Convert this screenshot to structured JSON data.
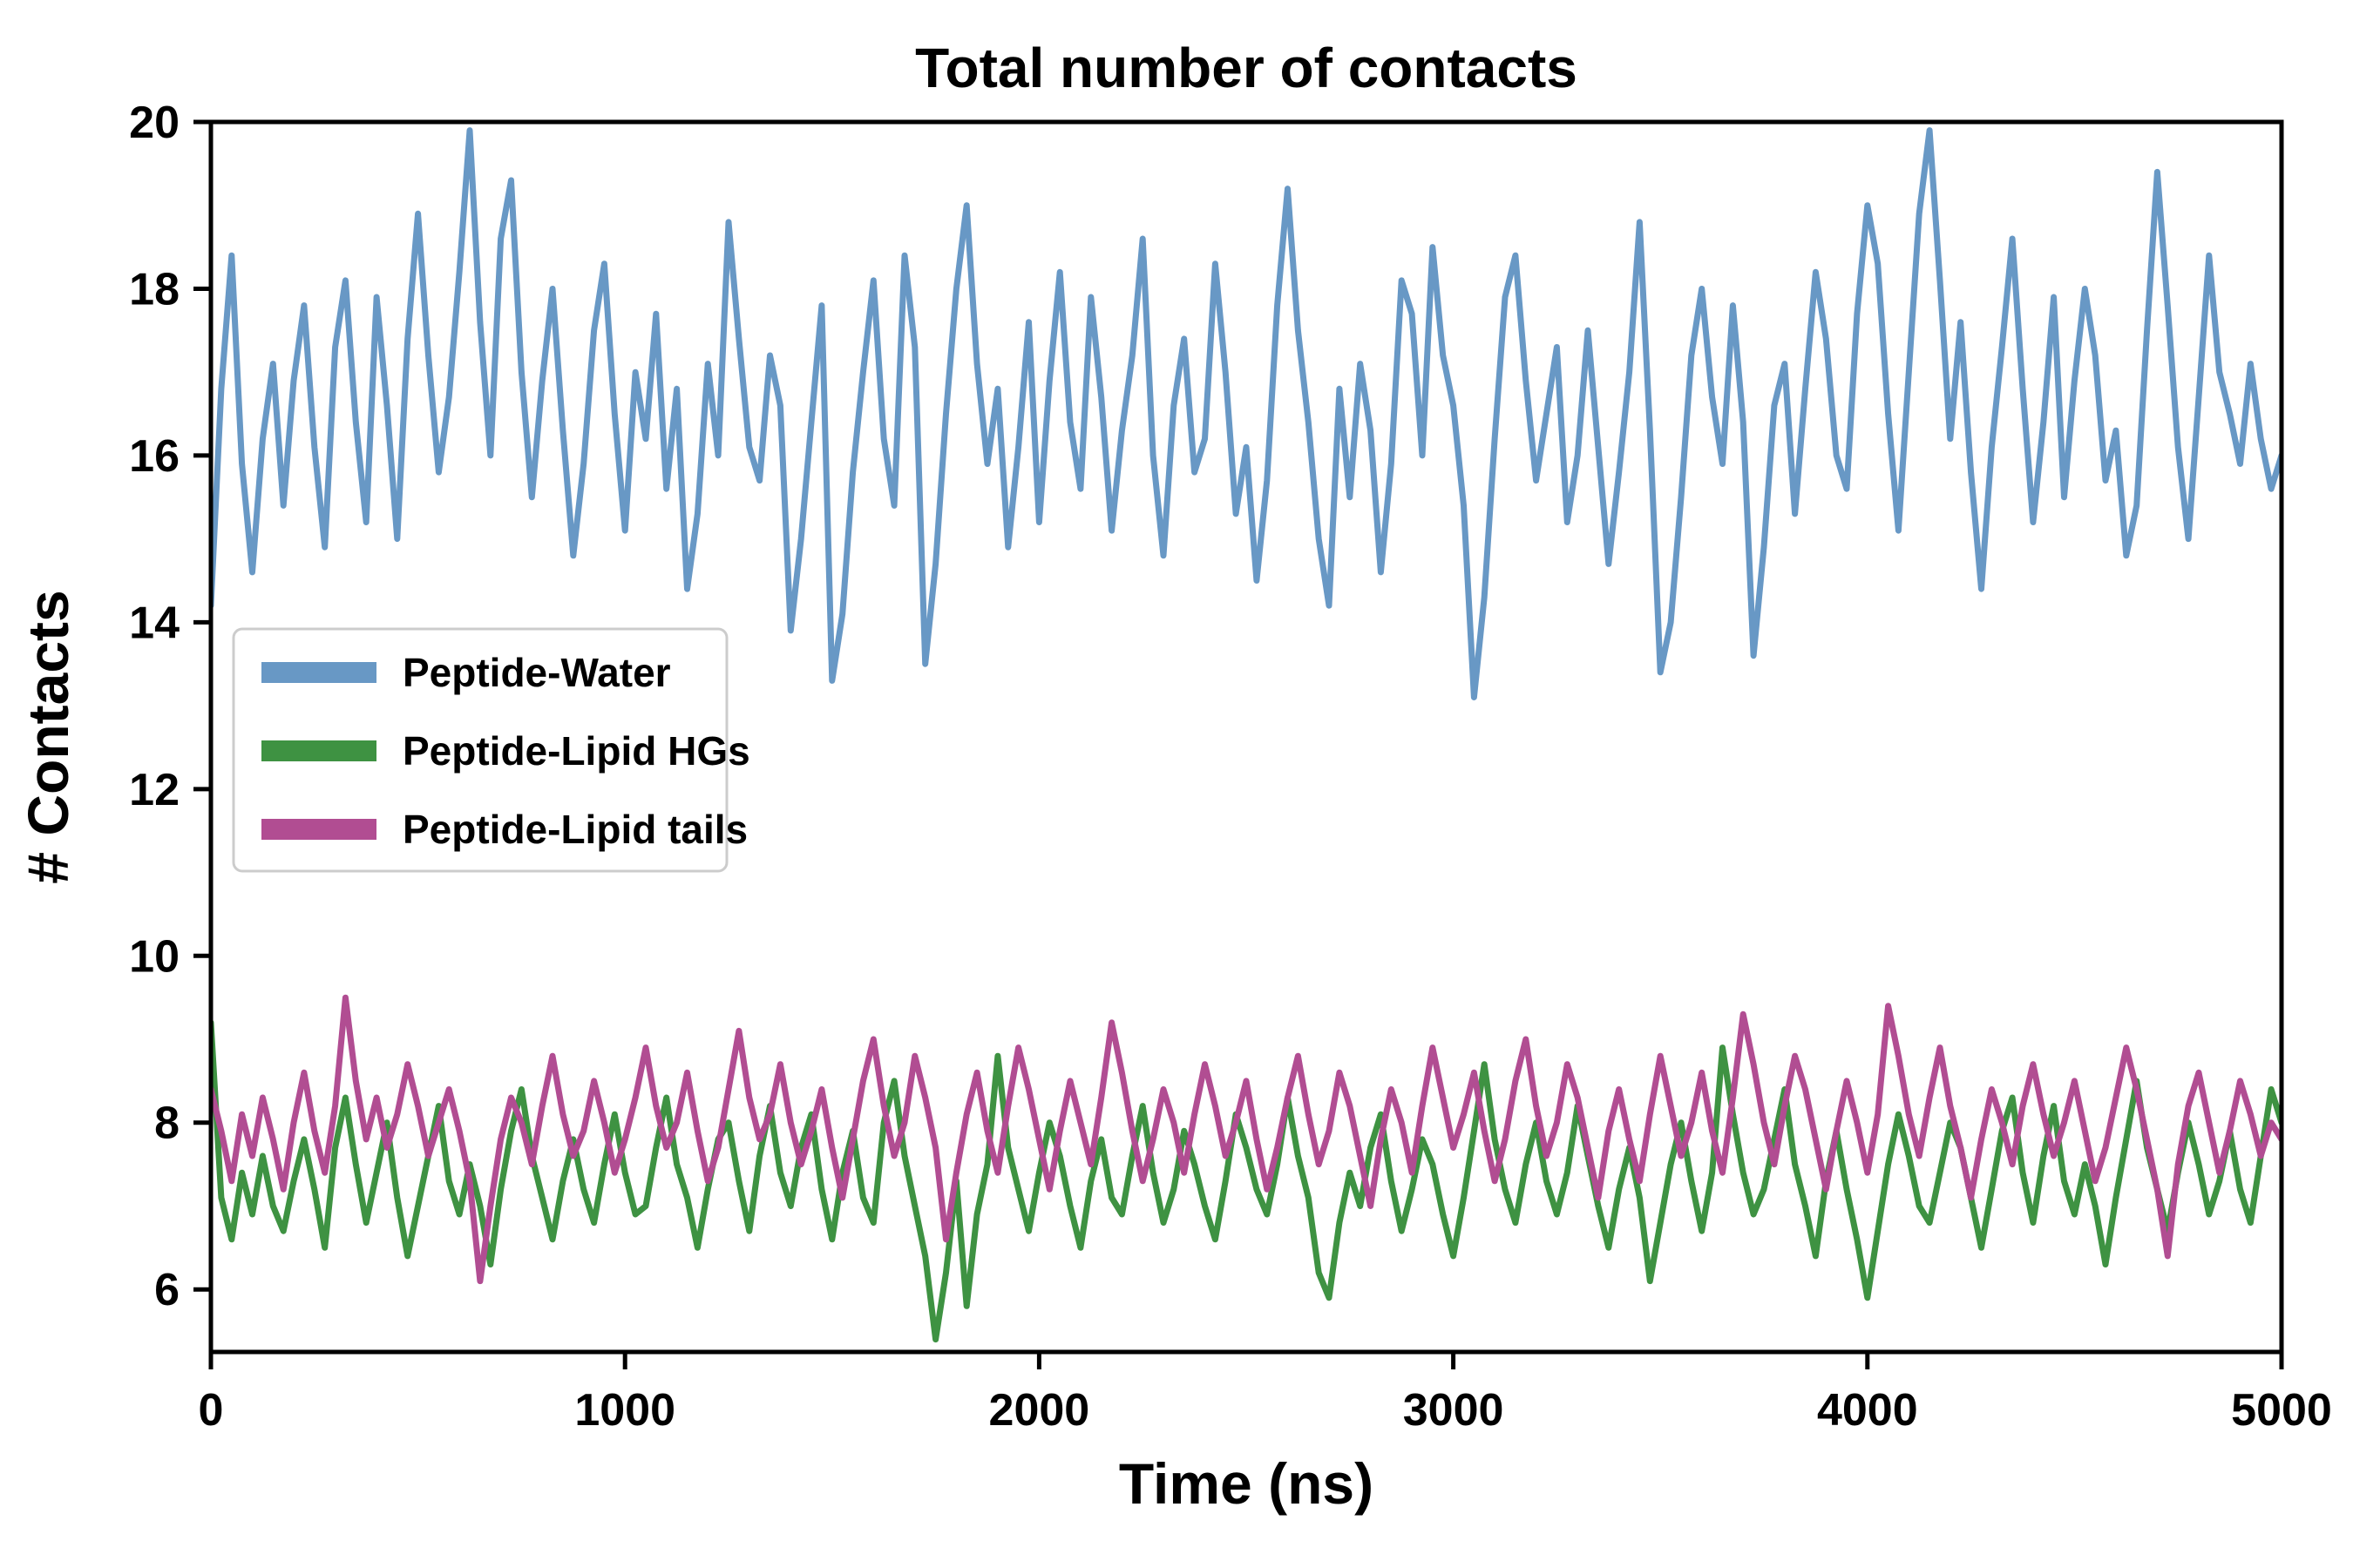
{
  "chart_data": {
    "type": "line",
    "title": "Total number of contacts",
    "xlabel": "Time (ns)",
    "ylabel": "# Contacts",
    "xlim": [
      0,
      5000
    ],
    "ylim": [
      5.25,
      20
    ],
    "xticks": [
      0,
      1000,
      2000,
      3000,
      4000,
      5000
    ],
    "yticks": [
      6,
      8,
      10,
      12,
      14,
      16,
      18,
      20
    ],
    "grid": false,
    "legend_position": "upper-left-inside",
    "x_start": 0,
    "x_step": 25,
    "colors": {
      "axis": "#000000",
      "background": "#ffffff",
      "legend_border": "#cccccc"
    },
    "series": [
      {
        "name": "Peptide-Water",
        "color": "#6898C5",
        "values": [
          14.2,
          16.8,
          18.4,
          15.9,
          14.6,
          16.2,
          17.1,
          15.4,
          16.9,
          17.8,
          16.1,
          14.9,
          17.3,
          18.1,
          16.4,
          15.2,
          17.9,
          16.6,
          15.0,
          17.4,
          18.9,
          17.2,
          15.8,
          16.7,
          18.2,
          19.9,
          17.6,
          16.0,
          18.6,
          19.3,
          17.0,
          15.5,
          16.9,
          18.0,
          16.3,
          14.8,
          15.9,
          17.5,
          18.3,
          16.5,
          15.1,
          17.0,
          16.2,
          17.7,
          15.6,
          16.8,
          14.4,
          15.3,
          17.1,
          16.0,
          18.8,
          17.4,
          16.1,
          15.7,
          17.2,
          16.6,
          13.9,
          15.0,
          16.4,
          17.8,
          13.3,
          14.1,
          15.8,
          17.0,
          18.1,
          16.2,
          15.4,
          18.4,
          17.3,
          13.5,
          14.7,
          16.5,
          18.0,
          19.0,
          17.1,
          15.9,
          16.8,
          14.9,
          16.1,
          17.6,
          15.2,
          16.9,
          18.2,
          16.4,
          15.6,
          17.9,
          16.7,
          15.1,
          16.3,
          17.2,
          18.6,
          16.0,
          14.8,
          16.6,
          17.4,
          15.8,
          16.2,
          18.3,
          17.0,
          15.3,
          16.1,
          14.5,
          15.7,
          17.8,
          19.2,
          17.5,
          16.4,
          15.0,
          14.2,
          16.8,
          15.5,
          17.1,
          16.3,
          14.6,
          15.9,
          18.1,
          17.7,
          16.0,
          18.5,
          17.2,
          16.6,
          15.4,
          13.1,
          14.3,
          16.2,
          17.9,
          18.4,
          16.9,
          15.7,
          16.5,
          17.3,
          15.2,
          16.0,
          17.5,
          16.1,
          14.7,
          15.8,
          17.0,
          18.8,
          16.3,
          13.4,
          14.0,
          15.5,
          17.2,
          18.0,
          16.7,
          15.9,
          17.8,
          16.4,
          13.6,
          14.9,
          16.6,
          17.1,
          15.3,
          16.8,
          18.2,
          17.4,
          16.0,
          15.6,
          17.7,
          19.0,
          18.3,
          16.5,
          15.1,
          17.0,
          18.9,
          19.9,
          18.1,
          16.2,
          17.6,
          15.8,
          14.4,
          16.1,
          17.3,
          18.6,
          16.8,
          15.2,
          16.4,
          17.9,
          15.5,
          16.9,
          18.0,
          17.2,
          15.7,
          16.3,
          14.8,
          15.4,
          17.5,
          19.4,
          17.8,
          16.1,
          15.0,
          16.7,
          18.4,
          17.0,
          16.5,
          15.9,
          17.1,
          16.2,
          15.6,
          16.0
        ]
      },
      {
        "name": "Peptide-Lipid HGs",
        "color": "#3E9242",
        "values": [
          9.2,
          7.1,
          6.6,
          7.4,
          6.9,
          7.6,
          7.0,
          6.7,
          7.3,
          7.8,
          7.2,
          6.5,
          7.7,
          8.3,
          7.5,
          6.8,
          7.4,
          8.0,
          7.1,
          6.4,
          7.0,
          7.6,
          8.2,
          7.3,
          6.9,
          7.5,
          7.0,
          6.3,
          7.2,
          7.9,
          8.4,
          7.6,
          7.1,
          6.6,
          7.3,
          7.8,
          7.2,
          6.8,
          7.5,
          8.1,
          7.4,
          6.9,
          7.0,
          7.7,
          8.3,
          7.5,
          7.1,
          6.5,
          7.2,
          7.8,
          8.0,
          7.3,
          6.7,
          7.6,
          8.2,
          7.4,
          7.0,
          7.7,
          8.1,
          7.2,
          6.6,
          7.4,
          7.9,
          7.1,
          6.8,
          8.0,
          8.5,
          7.6,
          7.0,
          6.4,
          5.4,
          6.2,
          7.3,
          5.8,
          6.9,
          7.5,
          8.8,
          7.7,
          7.2,
          6.7,
          7.4,
          8.0,
          7.6,
          7.0,
          6.5,
          7.3,
          7.8,
          7.1,
          6.9,
          7.6,
          8.2,
          7.4,
          6.8,
          7.2,
          7.9,
          7.5,
          7.0,
          6.6,
          7.3,
          8.1,
          7.7,
          7.2,
          6.9,
          7.5,
          8.3,
          7.6,
          7.1,
          6.2,
          5.9,
          6.8,
          7.4,
          7.0,
          7.7,
          8.1,
          7.3,
          6.7,
          7.2,
          7.8,
          7.5,
          6.9,
          6.4,
          7.1,
          7.9,
          8.7,
          7.8,
          7.2,
          6.8,
          7.5,
          8.0,
          7.3,
          6.9,
          7.4,
          8.2,
          7.6,
          7.0,
          6.5,
          7.2,
          7.7,
          7.1,
          6.1,
          6.8,
          7.5,
          8.0,
          7.3,
          6.7,
          7.4,
          8.9,
          8.1,
          7.4,
          6.9,
          7.2,
          7.8,
          8.4,
          7.5,
          7.0,
          6.4,
          7.3,
          7.9,
          7.2,
          6.6,
          5.9,
          6.7,
          7.5,
          8.1,
          7.6,
          7.0,
          6.8,
          7.4,
          8.0,
          7.7,
          7.1,
          6.5,
          7.2,
          7.9,
          8.3,
          7.4,
          6.8,
          7.6,
          8.2,
          7.3,
          6.9,
          7.5,
          7.0,
          6.3,
          7.1,
          7.8,
          8.5,
          7.7,
          7.2,
          6.7,
          7.4,
          8.0,
          7.5,
          6.9,
          7.3,
          7.9,
          7.2,
          6.8,
          7.6,
          8.4,
          8.0
        ]
      },
      {
        "name": "Peptide-Lipid tails",
        "color": "#B14D92",
        "values": [
          8.4,
          7.9,
          7.3,
          8.1,
          7.6,
          8.3,
          7.8,
          7.2,
          8.0,
          8.6,
          7.9,
          7.4,
          8.2,
          9.5,
          8.5,
          7.8,
          8.3,
          7.7,
          8.1,
          8.7,
          8.2,
          7.6,
          8.0,
          8.4,
          7.9,
          7.3,
          6.1,
          7.0,
          7.8,
          8.3,
          8.0,
          7.5,
          8.2,
          8.8,
          8.1,
          7.6,
          7.9,
          8.5,
          8.0,
          7.4,
          7.8,
          8.3,
          8.9,
          8.2,
          7.7,
          8.0,
          8.6,
          7.9,
          7.3,
          7.7,
          8.4,
          9.1,
          8.3,
          7.8,
          8.1,
          8.7,
          8.0,
          7.5,
          7.9,
          8.4,
          7.7,
          7.1,
          7.8,
          8.5,
          9.0,
          8.2,
          7.6,
          8.0,
          8.8,
          8.3,
          7.7,
          6.6,
          7.4,
          8.1,
          8.6,
          7.9,
          7.4,
          8.2,
          8.9,
          8.4,
          7.8,
          7.2,
          7.9,
          8.5,
          8.0,
          7.5,
          8.3,
          9.2,
          8.6,
          7.9,
          7.3,
          7.8,
          8.4,
          8.0,
          7.4,
          8.1,
          8.7,
          8.2,
          7.6,
          8.0,
          8.5,
          7.8,
          7.2,
          7.7,
          8.3,
          8.8,
          8.1,
          7.5,
          7.9,
          8.6,
          8.2,
          7.6,
          7.0,
          7.8,
          8.4,
          8.0,
          7.4,
          8.2,
          8.9,
          8.3,
          7.7,
          8.1,
          8.6,
          7.9,
          7.3,
          7.8,
          8.5,
          9.0,
          8.2,
          7.6,
          8.0,
          8.7,
          8.3,
          7.7,
          7.1,
          7.9,
          8.4,
          7.8,
          7.3,
          8.1,
          8.8,
          8.2,
          7.6,
          8.0,
          8.6,
          7.9,
          7.4,
          8.3,
          9.3,
          8.7,
          8.0,
          7.5,
          8.2,
          8.8,
          8.4,
          7.8,
          7.2,
          7.9,
          8.5,
          8.0,
          7.4,
          8.1,
          9.4,
          8.8,
          8.1,
          7.6,
          8.3,
          8.9,
          8.2,
          7.7,
          7.1,
          7.8,
          8.4,
          8.0,
          7.5,
          8.2,
          8.7,
          8.1,
          7.6,
          8.0,
          8.5,
          7.9,
          7.3,
          7.7,
          8.3,
          8.9,
          8.4,
          7.8,
          7.2,
          6.4,
          7.5,
          8.2,
          8.6,
          8.0,
          7.4,
          7.9,
          8.5,
          8.1,
          7.6,
          8.0,
          7.8
        ]
      }
    ]
  }
}
